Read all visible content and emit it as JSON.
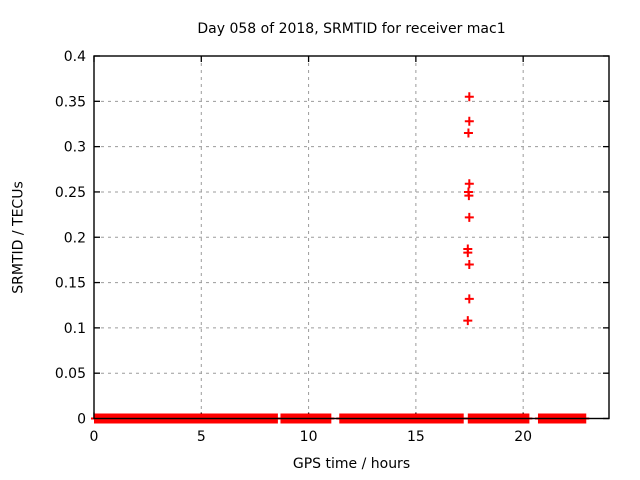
{
  "canvas": {
    "background": "#ffffff"
  },
  "chart_data": {
    "type": "scatter",
    "title": "Day 058 of 2018, SRMTID for receiver mac1",
    "xlabel": "GPS time / hours",
    "ylabel": "SRMTID / TECUs",
    "xlim": [
      0,
      24
    ],
    "ylim": [
      0,
      0.4
    ],
    "xticks": {
      "values": [
        0,
        5,
        10,
        15,
        20
      ],
      "labels": [
        "0",
        "5",
        "10",
        "15",
        "20"
      ]
    },
    "yticks": {
      "values": [
        0,
        0.05,
        0.1,
        0.15,
        0.2,
        0.25,
        0.3,
        0.35,
        0.4
      ],
      "labels": [
        "0",
        "0.05",
        "0.1",
        "0.15",
        "0.2",
        "0.25",
        "0.3",
        "0.35",
        "0.4"
      ]
    },
    "grid": {
      "visible": true,
      "color": "#9b9b9b",
      "dash": [
        3,
        4
      ]
    },
    "legend": {
      "visible": false
    },
    "marker": {
      "type": "plus",
      "color": "#ff0000",
      "size": 9,
      "stroke_width": 2
    },
    "colors": {
      "border": "#000000",
      "text": "#000000"
    },
    "series": [
      {
        "name": "baseline-at-zero",
        "style": "dense-plus-band",
        "y": 0,
        "x_segments": [
          [
            0,
            8.57
          ],
          [
            8.69,
            11.06
          ],
          [
            11.43,
            17.23
          ],
          [
            17.42,
            20.29
          ],
          [
            20.69,
            22.94
          ]
        ]
      },
      {
        "name": "outliers",
        "style": "plus-points",
        "points": [
          [
            17.49,
            0.355
          ],
          [
            17.49,
            0.328
          ],
          [
            17.45,
            0.315
          ],
          [
            17.49,
            0.259
          ],
          [
            17.45,
            0.25
          ],
          [
            17.47,
            0.246
          ],
          [
            17.49,
            0.222
          ],
          [
            17.42,
            0.187
          ],
          [
            17.42,
            0.183
          ],
          [
            17.49,
            0.17
          ],
          [
            17.49,
            0.132
          ],
          [
            17.42,
            0.108
          ]
        ]
      }
    ]
  }
}
